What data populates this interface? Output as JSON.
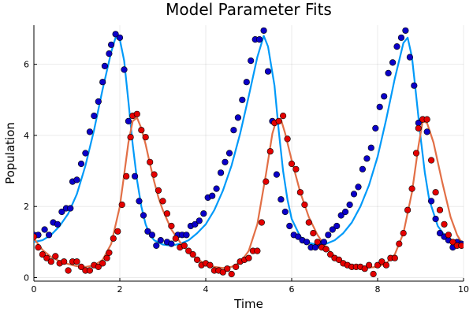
{
  "chart_data": {
    "type": "line",
    "title": "Model Parameter Fits",
    "xlabel": "Time",
    "ylabel": "Population",
    "xlim": [
      0,
      10
    ],
    "ylim": [
      -0.1,
      7.1
    ],
    "x_ticks": [
      "0",
      "2",
      "4",
      "6",
      "8",
      "10"
    ],
    "y_ticks": [
      "0",
      "2",
      "4",
      "6"
    ],
    "grid": true,
    "legend": "none",
    "series": [
      {
        "kind": "line",
        "color": "#009af9",
        "points": [
          [
            0,
            1.0
          ],
          [
            0.2,
            1.05
          ],
          [
            0.4,
            1.2
          ],
          [
            0.6,
            1.45
          ],
          [
            0.8,
            1.8
          ],
          [
            1.0,
            2.35
          ],
          [
            1.2,
            3.15
          ],
          [
            1.4,
            4.15
          ],
          [
            1.6,
            5.3
          ],
          [
            1.8,
            6.35
          ],
          [
            1.9,
            6.75
          ],
          [
            2.0,
            6.7
          ],
          [
            2.1,
            6.1
          ],
          [
            2.2,
            4.95
          ],
          [
            2.3,
            3.75
          ],
          [
            2.4,
            2.75
          ],
          [
            2.5,
            2.0
          ],
          [
            2.6,
            1.5
          ],
          [
            2.7,
            1.2
          ],
          [
            2.8,
            1.05
          ],
          [
            3.0,
            0.93
          ],
          [
            3.2,
            0.9
          ],
          [
            3.4,
            0.95
          ],
          [
            3.6,
            1.05
          ],
          [
            3.8,
            1.25
          ],
          [
            4.0,
            1.5
          ],
          [
            4.2,
            1.9
          ],
          [
            4.4,
            2.45
          ],
          [
            4.6,
            3.15
          ],
          [
            4.8,
            4.05
          ],
          [
            5.0,
            5.1
          ],
          [
            5.2,
            6.2
          ],
          [
            5.35,
            6.8
          ],
          [
            5.45,
            6.5
          ],
          [
            5.6,
            5.4
          ],
          [
            5.7,
            4.1
          ],
          [
            5.8,
            3.0
          ],
          [
            5.9,
            2.2
          ],
          [
            6.0,
            1.65
          ],
          [
            6.2,
            1.15
          ],
          [
            6.4,
            0.98
          ],
          [
            6.6,
            0.92
          ],
          [
            6.8,
            0.95
          ],
          [
            7.0,
            1.05
          ],
          [
            7.2,
            1.25
          ],
          [
            7.4,
            1.55
          ],
          [
            7.6,
            2.0
          ],
          [
            7.8,
            2.6
          ],
          [
            8.0,
            3.4
          ],
          [
            8.2,
            4.45
          ],
          [
            8.4,
            5.6
          ],
          [
            8.6,
            6.6
          ],
          [
            8.7,
            6.75
          ],
          [
            8.8,
            6.2
          ],
          [
            8.9,
            5.1
          ],
          [
            9.0,
            3.95
          ],
          [
            9.1,
            2.95
          ],
          [
            9.2,
            2.2
          ],
          [
            9.4,
            1.45
          ],
          [
            9.6,
            1.12
          ],
          [
            9.8,
            1.0
          ],
          [
            10.0,
            0.95
          ]
        ]
      },
      {
        "kind": "line",
        "color": "#e26f46",
        "points": [
          [
            0,
            1.1
          ],
          [
            0.2,
            0.78
          ],
          [
            0.4,
            0.58
          ],
          [
            0.6,
            0.46
          ],
          [
            0.8,
            0.38
          ],
          [
            1.0,
            0.32
          ],
          [
            1.2,
            0.3
          ],
          [
            1.4,
            0.34
          ],
          [
            1.6,
            0.5
          ],
          [
            1.8,
            0.95
          ],
          [
            2.0,
            2.0
          ],
          [
            2.1,
            2.9
          ],
          [
            2.2,
            3.8
          ],
          [
            2.3,
            4.4
          ],
          [
            2.4,
            4.5
          ],
          [
            2.5,
            4.2
          ],
          [
            2.6,
            3.75
          ],
          [
            2.7,
            3.2
          ],
          [
            2.8,
            2.7
          ],
          [
            2.9,
            2.25
          ],
          [
            3.0,
            1.9
          ],
          [
            3.2,
            1.35
          ],
          [
            3.4,
            1.0
          ],
          [
            3.6,
            0.72
          ],
          [
            3.8,
            0.52
          ],
          [
            4.0,
            0.38
          ],
          [
            4.2,
            0.3
          ],
          [
            4.4,
            0.27
          ],
          [
            4.6,
            0.3
          ],
          [
            4.8,
            0.42
          ],
          [
            5.0,
            0.75
          ],
          [
            5.2,
            1.5
          ],
          [
            5.4,
            2.9
          ],
          [
            5.55,
            4.05
          ],
          [
            5.65,
            4.45
          ],
          [
            5.75,
            4.45
          ],
          [
            5.85,
            4.05
          ],
          [
            6.0,
            3.3
          ],
          [
            6.2,
            2.4
          ],
          [
            6.4,
            1.7
          ],
          [
            6.6,
            1.2
          ],
          [
            6.8,
            0.85
          ],
          [
            7.0,
            0.6
          ],
          [
            7.2,
            0.45
          ],
          [
            7.4,
            0.35
          ],
          [
            7.6,
            0.3
          ],
          [
            7.8,
            0.28
          ],
          [
            8.0,
            0.3
          ],
          [
            8.2,
            0.4
          ],
          [
            8.4,
            0.65
          ],
          [
            8.6,
            1.25
          ],
          [
            8.8,
            2.4
          ],
          [
            8.95,
            3.7
          ],
          [
            9.05,
            4.4
          ],
          [
            9.15,
            4.35
          ],
          [
            9.3,
            3.8
          ],
          [
            9.5,
            2.7
          ],
          [
            9.7,
            1.7
          ],
          [
            9.85,
            1.2
          ],
          [
            10.0,
            0.9
          ]
        ]
      },
      {
        "kind": "scatter",
        "color": "#0b00c8",
        "points": [
          [
            0,
            1.2
          ],
          [
            0.1,
            1.2
          ],
          [
            0.25,
            1.35
          ],
          [
            0.35,
            1.2
          ],
          [
            0.45,
            1.55
          ],
          [
            0.55,
            1.5
          ],
          [
            0.65,
            1.85
          ],
          [
            0.75,
            1.95
          ],
          [
            0.85,
            1.95
          ],
          [
            0.9,
            2.7
          ],
          [
            1.0,
            2.75
          ],
          [
            1.1,
            3.2
          ],
          [
            1.2,
            3.5
          ],
          [
            1.3,
            4.1
          ],
          [
            1.4,
            4.55
          ],
          [
            1.5,
            4.95
          ],
          [
            1.6,
            5.5
          ],
          [
            1.65,
            5.95
          ],
          [
            1.75,
            6.3
          ],
          [
            1.8,
            6.55
          ],
          [
            1.9,
            6.85
          ],
          [
            2.0,
            6.75
          ],
          [
            2.1,
            5.85
          ],
          [
            2.2,
            4.4
          ],
          [
            2.35,
            2.85
          ],
          [
            2.45,
            2.15
          ],
          [
            2.55,
            1.75
          ],
          [
            2.65,
            1.3
          ],
          [
            2.75,
            1.2
          ],
          [
            2.85,
            0.9
          ],
          [
            2.95,
            1.05
          ],
          [
            3.1,
            1.0
          ],
          [
            3.2,
            0.95
          ],
          [
            3.35,
            1.2
          ],
          [
            3.45,
            1.2
          ],
          [
            3.55,
            1.2
          ],
          [
            3.65,
            1.45
          ],
          [
            3.75,
            1.5
          ],
          [
            3.85,
            1.6
          ],
          [
            3.95,
            1.8
          ],
          [
            4.05,
            2.25
          ],
          [
            4.15,
            2.3
          ],
          [
            4.25,
            2.5
          ],
          [
            4.35,
            2.95
          ],
          [
            4.45,
            3.25
          ],
          [
            4.55,
            3.5
          ],
          [
            4.65,
            4.15
          ],
          [
            4.75,
            4.5
          ],
          [
            4.85,
            5.0
          ],
          [
            4.95,
            5.5
          ],
          [
            5.05,
            6.1
          ],
          [
            5.15,
            6.7
          ],
          [
            5.25,
            6.7
          ],
          [
            5.35,
            6.95
          ],
          [
            5.45,
            5.8
          ],
          [
            5.55,
            4.4
          ],
          [
            5.65,
            2.9
          ],
          [
            5.75,
            2.2
          ],
          [
            5.85,
            1.85
          ],
          [
            5.95,
            1.45
          ],
          [
            6.05,
            1.2
          ],
          [
            6.15,
            1.15
          ],
          [
            6.25,
            1.05
          ],
          [
            6.35,
            1.0
          ],
          [
            6.45,
            0.85
          ],
          [
            6.55,
            0.85
          ],
          [
            6.65,
            0.95
          ],
          [
            6.75,
            1.0
          ],
          [
            6.85,
            1.2
          ],
          [
            6.95,
            1.35
          ],
          [
            7.05,
            1.45
          ],
          [
            7.15,
            1.75
          ],
          [
            7.25,
            1.85
          ],
          [
            7.35,
            2.05
          ],
          [
            7.45,
            2.35
          ],
          [
            7.55,
            2.55
          ],
          [
            7.65,
            3.05
          ],
          [
            7.75,
            3.35
          ],
          [
            7.85,
            3.65
          ],
          [
            7.95,
            4.2
          ],
          [
            8.05,
            4.8
          ],
          [
            8.15,
            5.1
          ],
          [
            8.25,
            5.75
          ],
          [
            8.35,
            6.05
          ],
          [
            8.45,
            6.5
          ],
          [
            8.55,
            6.75
          ],
          [
            8.65,
            6.95
          ],
          [
            8.75,
            6.2
          ],
          [
            8.85,
            5.4
          ],
          [
            8.95,
            4.35
          ],
          [
            9.05,
            4.45
          ],
          [
            9.15,
            4.1
          ],
          [
            9.25,
            2.15
          ],
          [
            9.35,
            1.65
          ],
          [
            9.45,
            1.25
          ],
          [
            9.55,
            1.15
          ],
          [
            9.65,
            1.05
          ],
          [
            9.75,
            0.85
          ],
          [
            9.85,
            1.0
          ],
          [
            9.95,
            0.95
          ]
        ]
      },
      {
        "kind": "scatter",
        "color": "#e40000",
        "points": [
          [
            0,
            1.15
          ],
          [
            0.1,
            0.85
          ],
          [
            0.2,
            0.65
          ],
          [
            0.3,
            0.55
          ],
          [
            0.4,
            0.45
          ],
          [
            0.5,
            0.6
          ],
          [
            0.6,
            0.4
          ],
          [
            0.7,
            0.45
          ],
          [
            0.8,
            0.2
          ],
          [
            0.9,
            0.45
          ],
          [
            1.0,
            0.45
          ],
          [
            1.1,
            0.3
          ],
          [
            1.2,
            0.2
          ],
          [
            1.3,
            0.2
          ],
          [
            1.4,
            0.35
          ],
          [
            1.5,
            0.3
          ],
          [
            1.6,
            0.4
          ],
          [
            1.7,
            0.55
          ],
          [
            1.75,
            0.7
          ],
          [
            1.85,
            1.1
          ],
          [
            1.95,
            1.3
          ],
          [
            2.05,
            2.05
          ],
          [
            2.15,
            2.85
          ],
          [
            2.25,
            3.95
          ],
          [
            2.3,
            4.55
          ],
          [
            2.4,
            4.6
          ],
          [
            2.5,
            4.15
          ],
          [
            2.6,
            3.95
          ],
          [
            2.7,
            3.25
          ],
          [
            2.8,
            2.9
          ],
          [
            2.9,
            2.45
          ],
          [
            3.0,
            2.15
          ],
          [
            3.1,
            1.8
          ],
          [
            3.2,
            1.45
          ],
          [
            3.3,
            1.1
          ],
          [
            3.4,
            0.85
          ],
          [
            3.5,
            0.9
          ],
          [
            3.6,
            0.75
          ],
          [
            3.7,
            0.65
          ],
          [
            3.8,
            0.5
          ],
          [
            3.9,
            0.35
          ],
          [
            4.0,
            0.4
          ],
          [
            4.1,
            0.35
          ],
          [
            4.2,
            0.2
          ],
          [
            4.3,
            0.2
          ],
          [
            4.4,
            0.15
          ],
          [
            4.5,
            0.25
          ],
          [
            4.6,
            0.1
          ],
          [
            4.7,
            0.3
          ],
          [
            4.8,
            0.45
          ],
          [
            4.9,
            0.5
          ],
          [
            5.0,
            0.55
          ],
          [
            5.1,
            0.75
          ],
          [
            5.2,
            0.75
          ],
          [
            5.3,
            1.55
          ],
          [
            5.4,
            2.7
          ],
          [
            5.5,
            3.55
          ],
          [
            5.6,
            4.35
          ],
          [
            5.7,
            4.4
          ],
          [
            5.8,
            4.55
          ],
          [
            5.9,
            3.9
          ],
          [
            6.0,
            3.2
          ],
          [
            6.1,
            3.05
          ],
          [
            6.2,
            2.4
          ],
          [
            6.3,
            2.05
          ],
          [
            6.4,
            1.55
          ],
          [
            6.5,
            1.25
          ],
          [
            6.6,
            1.0
          ],
          [
            6.7,
            0.85
          ],
          [
            6.8,
            0.8
          ],
          [
            6.9,
            0.65
          ],
          [
            7.0,
            0.55
          ],
          [
            7.1,
            0.5
          ],
          [
            7.2,
            0.4
          ],
          [
            7.3,
            0.35
          ],
          [
            7.4,
            0.3
          ],
          [
            7.5,
            0.3
          ],
          [
            7.6,
            0.3
          ],
          [
            7.7,
            0.25
          ],
          [
            7.8,
            0.35
          ],
          [
            7.9,
            0.1
          ],
          [
            8.0,
            0.35
          ],
          [
            8.1,
            0.45
          ],
          [
            8.2,
            0.35
          ],
          [
            8.3,
            0.55
          ],
          [
            8.4,
            0.55
          ],
          [
            8.5,
            0.95
          ],
          [
            8.6,
            1.25
          ],
          [
            8.7,
            1.9
          ],
          [
            8.8,
            2.5
          ],
          [
            8.9,
            3.5
          ],
          [
            8.95,
            4.2
          ],
          [
            9.05,
            4.45
          ],
          [
            9.15,
            4.45
          ],
          [
            9.25,
            3.3
          ],
          [
            9.35,
            2.4
          ],
          [
            9.45,
            1.9
          ],
          [
            9.55,
            1.5
          ],
          [
            9.65,
            1.2
          ],
          [
            9.75,
            1.0
          ],
          [
            9.85,
            0.9
          ],
          [
            9.95,
            0.9
          ]
        ]
      }
    ]
  }
}
